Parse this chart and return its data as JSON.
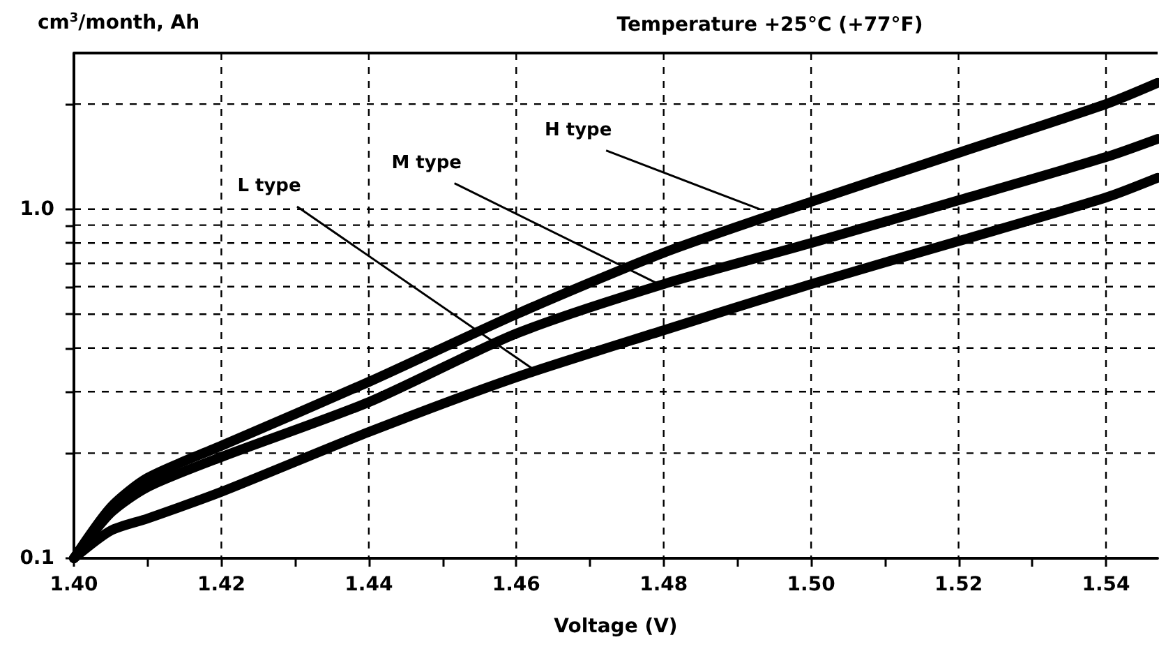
{
  "chart_data": {
    "type": "line",
    "title": "Temperature +25°C (+77°F)",
    "xlabel": "Voltage (V)",
    "ylabel": "cm$^{3}$/month, Ah",
    "x": [
      1.4,
      1.405,
      1.41,
      1.42,
      1.44,
      1.46,
      1.48,
      1.5,
      1.52,
      1.54,
      1.547
    ],
    "series": [
      {
        "color": "#000000",
        "values": [
          0.1,
          0.14,
          0.17,
          0.21,
          0.32,
          0.5,
          0.75,
          1.05,
          1.45,
          2.0,
          2.3
        ]
      },
      {
        "color": "#000000",
        "values": [
          0.1,
          0.135,
          0.16,
          0.195,
          0.28,
          0.44,
          0.61,
          0.8,
          1.06,
          1.41,
          1.59
        ]
      },
      {
        "color": "#000000",
        "values": [
          0.1,
          0.12,
          0.13,
          0.155,
          0.23,
          0.33,
          0.45,
          0.61,
          0.81,
          1.08,
          1.23
        ]
      }
    ],
    "annotations": [
      {
        "text": "H type",
        "x": 1.493,
        "y": 1.0
      },
      {
        "text": "M type",
        "x": 1.48,
        "y": 0.6
      },
      {
        "text": "L type",
        "x": 1.463,
        "y": 0.34
      }
    ],
    "xlim": [
      1.4,
      1.547
    ],
    "xticks": [
      {
        "value": 1.4,
        "label": "1.40"
      },
      {
        "value": 1.41,
        "label": null
      },
      {
        "value": 1.42,
        "label": "1.42"
      },
      {
        "value": 1.43,
        "label": null
      },
      {
        "value": 1.44,
        "label": "1.44"
      },
      {
        "value": 1.45,
        "label": null
      },
      {
        "value": 1.46,
        "label": "1.46"
      },
      {
        "value": 1.47,
        "label": null
      },
      {
        "value": 1.48,
        "label": "1.48"
      },
      {
        "value": 1.49,
        "label": null
      },
      {
        "value": 1.5,
        "label": "1.50"
      },
      {
        "value": 1.51,
        "label": null
      },
      {
        "value": 1.52,
        "label": "1.52"
      },
      {
        "value": 1.53,
        "label": null
      },
      {
        "value": 1.54,
        "label": "1.54"
      }
    ],
    "ylim": [
      0.1,
      2.8
    ],
    "yticks": [
      {
        "value": 0.1,
        "label": "0.1"
      },
      {
        "value": 0.2,
        "label": null
      },
      {
        "value": 0.3,
        "label": null
      },
      {
        "value": 0.4,
        "label": null
      },
      {
        "value": 0.5,
        "label": null
      },
      {
        "value": 0.6,
        "label": null
      },
      {
        "value": 0.7,
        "label": null
      },
      {
        "value": 0.8,
        "label": null
      },
      {
        "value": 0.9,
        "label": null
      },
      {
        "value": 1.0,
        "label": "1.0"
      },
      {
        "value": 2.0,
        "label": null
      }
    ],
    "log": "y",
    "grid": true,
    "line_style": "solid"
  }
}
